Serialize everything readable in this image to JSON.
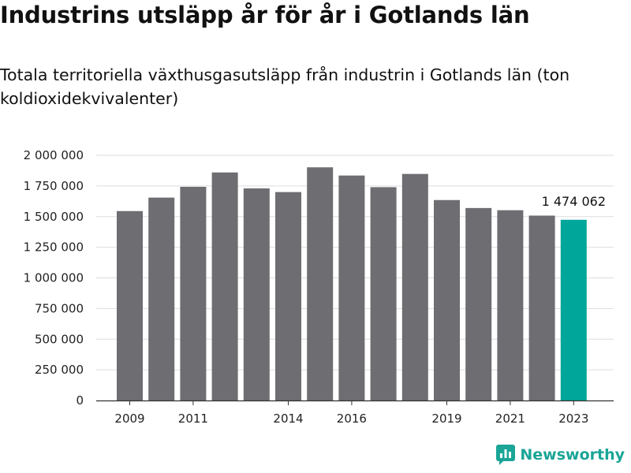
{
  "title": "Industrins utsläpp år för år i Gotlands län",
  "subtitle": "Totala territoriella växthusgasutsläpp från industrin i Gotlands län (ton koldioxidekvivalenter)",
  "brand": {
    "name": "Newsworthy",
    "icon": "newsworthy-logo-icon",
    "color": "#1aa596"
  },
  "colors": {
    "bar": "#6d6d72",
    "highlight": "#00a699",
    "grid": "#dddddd",
    "axis": "#333333"
  },
  "chart_data": {
    "type": "bar",
    "title": "",
    "xlabel": "",
    "ylabel": "",
    "categories": [
      "2009",
      "2010",
      "2011",
      "2012",
      "2013",
      "2014",
      "2015",
      "2016",
      "2017",
      "2018",
      "2019",
      "2020",
      "2021",
      "2022",
      "2023"
    ],
    "x_tick_labels": [
      "2009",
      "",
      "2011",
      "",
      "",
      "2014",
      "",
      "2016",
      "",
      "",
      "2019",
      "",
      "2021",
      "",
      "2023"
    ],
    "values": [
      1545000,
      1655000,
      1743000,
      1860000,
      1730000,
      1700000,
      1902000,
      1835000,
      1740000,
      1848000,
      1635000,
      1570000,
      1552000,
      1508000,
      1474062
    ],
    "highlight_index": 14,
    "highlight_label": "1 474 062",
    "ylim": [
      0,
      2000000
    ],
    "y_ticks": [
      0,
      250000,
      500000,
      750000,
      1000000,
      1250000,
      1500000,
      1750000,
      2000000
    ],
    "y_tick_labels": [
      "0",
      "250 000",
      "500 000",
      "750 000",
      "1 000 000",
      "1 250 000",
      "1 500 000",
      "1 750 000",
      "2 000 000"
    ],
    "grid": true
  }
}
